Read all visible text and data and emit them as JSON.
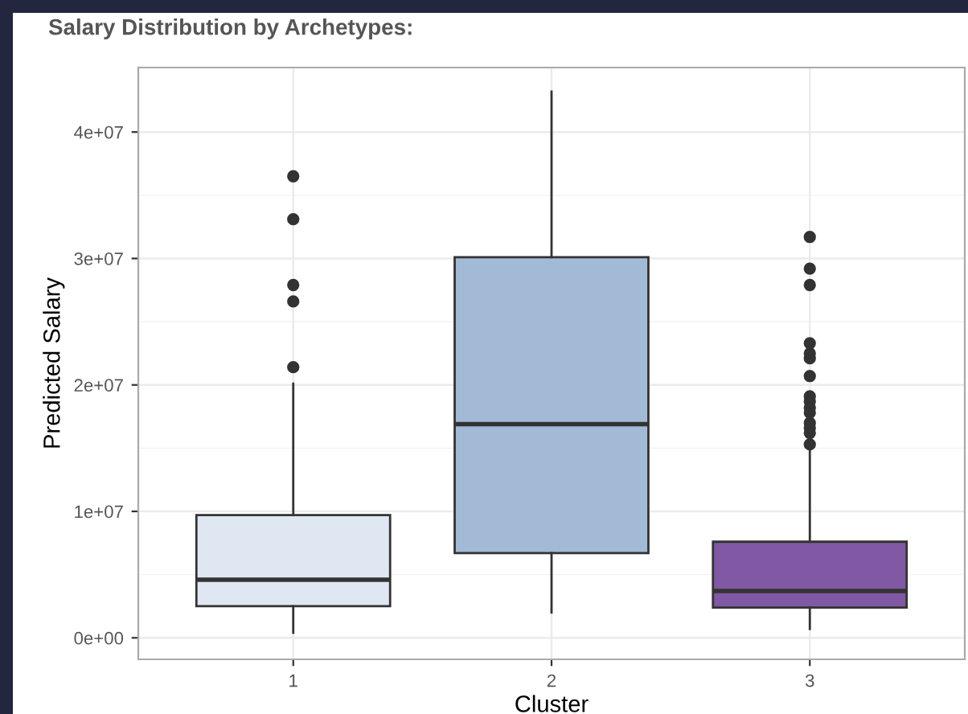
{
  "chart_data": {
    "type": "box",
    "title": "Salary Distribution by Archetypes:",
    "xlabel": "Cluster",
    "ylabel": "Predicted Salary",
    "categories": [
      "1",
      "2",
      "3"
    ],
    "colors": [
      "#dfe8f2",
      "#a3bad6",
      "#8158a3"
    ],
    "boxes": [
      {
        "low": 400000,
        "q1": 2500000,
        "median": 4600000,
        "q3": 9700000,
        "high": 20100000,
        "outliers": [
          36500000,
          33100000,
          27900000,
          26600000,
          21400000
        ]
      },
      {
        "low": 2000000,
        "q1": 6700000,
        "median": 16900000,
        "q3": 30100000,
        "high": 43200000
      },
      {
        "low": 700000,
        "q1": 2400000,
        "median": 3700000,
        "q3": 7600000,
        "high": 15200000,
        "outliers": [
          31700000,
          29200000,
          27900000,
          23300000,
          22500000,
          22100000,
          20700000,
          19100000,
          18700000,
          18200000,
          17800000,
          17000000,
          16600000,
          16200000,
          15300000
        ]
      }
    ],
    "ylim": [
      -1700000,
      45100000
    ],
    "yticks": [
      {
        "value": 0,
        "label": "0e+00"
      },
      {
        "value": 10000000,
        "label": "1e+07"
      },
      {
        "value": 20000000,
        "label": "2e+07"
      },
      {
        "value": 30000000,
        "label": "3e+07"
      },
      {
        "value": 40000000,
        "label": "4e+07"
      }
    ],
    "grid": true,
    "legend": false
  }
}
